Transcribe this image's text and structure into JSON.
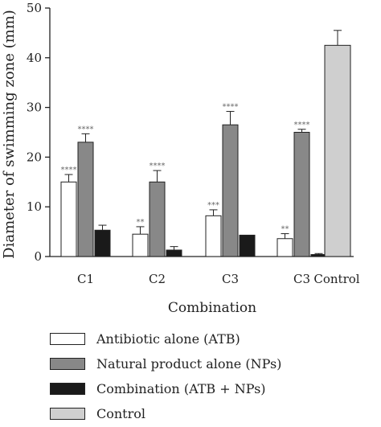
{
  "chart_data": {
    "type": "bar",
    "xlabel": "Combination",
    "ylabel": "Diameter of swimming zone (mm)",
    "ylim": [
      0,
      50
    ],
    "yticks": [
      "0",
      "10",
      "20",
      "30",
      "40",
      "50"
    ],
    "grid": false,
    "legend_position": "bottom",
    "categories": [
      "C1",
      "C2",
      "C3",
      "C3",
      "Control"
    ],
    "series": [
      {
        "name": "Antibiotic alone (ATB)",
        "color": "#ffffff",
        "values": [
          15,
          4.5,
          8.2,
          3.6,
          null
        ],
        "errors": [
          1.5,
          1.5,
          1.2,
          1.0,
          null
        ],
        "significance": [
          "****",
          "**",
          "***",
          "**",
          ""
        ]
      },
      {
        "name": "Natural product alone (NPs)",
        "color": "#888888",
        "values": [
          23,
          15,
          26.5,
          25,
          null
        ],
        "errors": [
          1.7,
          2.3,
          2.7,
          0.6,
          null
        ],
        "significance": [
          "****",
          "****",
          "****",
          "****",
          ""
        ]
      },
      {
        "name": "Combination (ATB + NPs)",
        "color": "#1a1a1a",
        "values": [
          5.3,
          1.3,
          4.3,
          0.4,
          null
        ],
        "errors": [
          1.0,
          0.7,
          0,
          0.2,
          null
        ],
        "significance": [
          "",
          "",
          "",
          "",
          ""
        ]
      },
      {
        "name": "Control",
        "color": "#cfcfcf",
        "values": [
          null,
          null,
          null,
          null,
          42.5
        ],
        "errors": [
          null,
          null,
          null,
          null,
          3
        ],
        "significance": [
          "",
          "",
          "",
          "",
          ""
        ]
      }
    ]
  }
}
